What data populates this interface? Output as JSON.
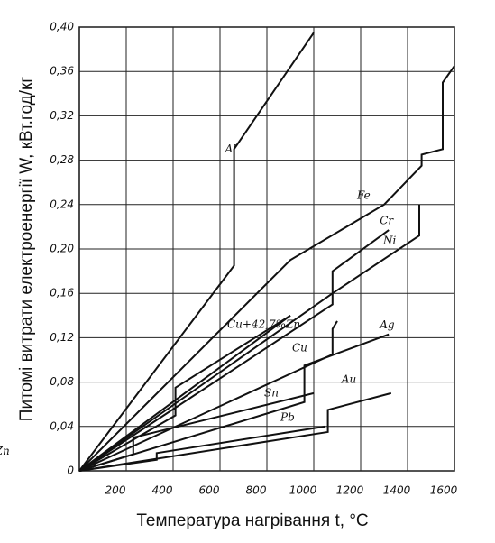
{
  "chart_data": {
    "type": "line",
    "x_label": "Температура нагрівання t, °C",
    "y_label": "Питомі витрати електроенергії W, кВт.год/кг",
    "xlim": [
      0,
      1600
    ],
    "ylim": [
      0,
      0.4
    ],
    "xticks": [
      200,
      400,
      600,
      800,
      1000,
      1200,
      1400,
      1600
    ],
    "yticks": [
      0,
      {
        "value": 0.04,
        "label": "0,04"
      },
      {
        "value": 0.08,
        "label": "0,08"
      },
      {
        "value": 0.12,
        "label": "0,12"
      },
      {
        "value": 0.16,
        "label": "0,16"
      },
      {
        "value": 0.2,
        "label": "0,20"
      },
      {
        "value": 0.24,
        "label": "0,24"
      },
      {
        "value": 0.28,
        "label": "0,28"
      },
      {
        "value": 0.32,
        "label": "0,32"
      },
      {
        "value": 0.36,
        "label": "0,36"
      },
      {
        "value": 0.4,
        "label": "0,40"
      }
    ],
    "grid": true,
    "series": [
      {
        "name": "Al",
        "color": "#111111",
        "x": [
          0,
          660,
          660,
          1000
        ],
        "values": [
          0,
          0.185,
          0.29,
          0.395
        ]
      },
      {
        "name": "Fe",
        "color": "#111111",
        "x": [
          0,
          900,
          1300,
          1460,
          1460,
          1550,
          1550,
          1600
        ],
        "values": [
          0,
          0.19,
          0.24,
          0.275,
          0.285,
          0.29,
          0.35,
          0.365
        ]
      },
      {
        "name": "Cr",
        "color": "#111111",
        "x": [
          0,
          1080,
          1080,
          1320
        ],
        "values": [
          0,
          0.15,
          0.18,
          0.217
        ]
      },
      {
        "name": "Ni",
        "color": "#111111",
        "x": [
          0,
          1080,
          1450,
          1450
        ],
        "values": [
          0,
          0.16,
          0.212,
          0.24
        ]
      },
      {
        "name": "Cu+42,7%Zn",
        "color": "#111111",
        "x": [
          0,
          900
        ],
        "values": [
          0,
          0.14
        ]
      },
      {
        "name": "Zn",
        "color": "#111111",
        "x": [
          0,
          410,
          410,
          900
        ],
        "values": [
          0,
          0.05,
          0.075,
          0.14
        ]
      },
      {
        "name": "Cu",
        "color": "#111111",
        "x": [
          0,
          1080,
          1080,
          1100
        ],
        "values": [
          0,
          0.105,
          0.128,
          0.135
        ]
      },
      {
        "name": "Ag",
        "color": "#111111",
        "x": [
          0,
          960,
          960,
          1320
        ],
        "values": [
          0,
          0.062,
          0.095,
          0.123
        ]
      },
      {
        "name": "Sn",
        "color": "#111111",
        "x": [
          0,
          230,
          230,
          1000
        ],
        "values": [
          0,
          0.015,
          0.03,
          0.07
        ]
      },
      {
        "name": "Au",
        "color": "#111111",
        "x": [
          0,
          1060,
          1060,
          1330
        ],
        "values": [
          0,
          0.035,
          0.055,
          0.07
        ]
      },
      {
        "name": "Pb",
        "color": "#111111",
        "x": [
          0,
          330,
          330,
          1050
        ],
        "values": [
          0,
          0.01,
          0.016,
          0.04
        ]
      }
    ]
  }
}
